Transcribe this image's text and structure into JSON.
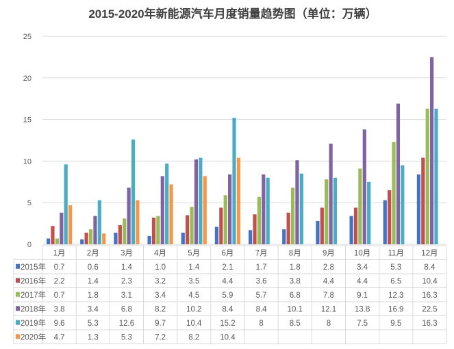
{
  "chart_data": {
    "type": "bar",
    "title": "2015-2020年新能源汽车月度销量趋势图（单位：万辆）",
    "xlabel": "",
    "ylabel": "",
    "ylim": [
      0,
      25
    ],
    "yticks": [
      "0",
      "5",
      "10",
      "15",
      "20",
      "25"
    ],
    "grid": true,
    "legend": "data-table-left",
    "categories": [
      "1月",
      "2月",
      "3月",
      "4月",
      "5月",
      "6月",
      "7月",
      "8月",
      "9月",
      "10月",
      "11月",
      "12月"
    ],
    "series": [
      {
        "name": "2015年",
        "color": "#4472C4",
        "values": [
          0.7,
          0.6,
          1.4,
          1.0,
          1.4,
          2.1,
          1.7,
          1.8,
          2.8,
          3.4,
          5.3,
          8.4
        ],
        "labels": [
          "0.7",
          "0.6",
          "1.4",
          "1.0",
          "1.4",
          "2.1",
          "1.7",
          "1.8",
          "2.8",
          "3.4",
          "5.3",
          "8.4"
        ]
      },
      {
        "name": "2016年",
        "color": "#C0504D",
        "values": [
          2.2,
          1.4,
          2.3,
          3.2,
          3.5,
          4.4,
          3.6,
          3.8,
          4.4,
          4.4,
          6.5,
          10.4
        ],
        "labels": [
          "2.2",
          "1.4",
          "2.3",
          "3.2",
          "3.5",
          "4.4",
          "3.6",
          "3.8",
          "4.4",
          "4.4",
          "6.5",
          "10.4"
        ]
      },
      {
        "name": "2017年",
        "color": "#9BBB59",
        "values": [
          0.7,
          1.8,
          3.1,
          3.4,
          4.5,
          5.9,
          5.7,
          6.8,
          7.8,
          9.1,
          12.3,
          16.3
        ],
        "labels": [
          "0.7",
          "1.8",
          "3.1",
          "3.4",
          "4.5",
          "5.9",
          "5.7",
          "6.8",
          "7.8",
          "9.1",
          "12.3",
          "16.3"
        ]
      },
      {
        "name": "2018年",
        "color": "#8064A2",
        "values": [
          3.8,
          3.4,
          6.8,
          8.2,
          10.2,
          8.4,
          8.4,
          10.1,
          12.1,
          13.8,
          16.9,
          22.5
        ],
        "labels": [
          "3.8",
          "3.4",
          "6.8",
          "8.2",
          "10.2",
          "8.4",
          "8.4",
          "10.1",
          "12.1",
          "13.8",
          "16.9",
          "22.5"
        ]
      },
      {
        "name": "2019年",
        "color": "#4BACC6",
        "values": [
          9.6,
          5.3,
          12.6,
          9.7,
          10.4,
          15.2,
          8,
          8.5,
          8,
          7.5,
          9.5,
          16.3
        ],
        "labels": [
          "9.6",
          "5.3",
          "12.6",
          "9.7",
          "10.4",
          "15.2",
          "8",
          "8.5",
          "8",
          "7.5",
          "9.5",
          "16.3"
        ]
      },
      {
        "name": "2020年",
        "color": "#F79646",
        "values": [
          4.7,
          1.3,
          5.3,
          7.2,
          8.2,
          10.4,
          null,
          null,
          null,
          null,
          null,
          null
        ],
        "labels": [
          "4.7",
          "1.3",
          "5.3",
          "7.2",
          "8.2",
          "10.4",
          "",
          "",
          "",
          "",
          "",
          ""
        ]
      }
    ]
  }
}
